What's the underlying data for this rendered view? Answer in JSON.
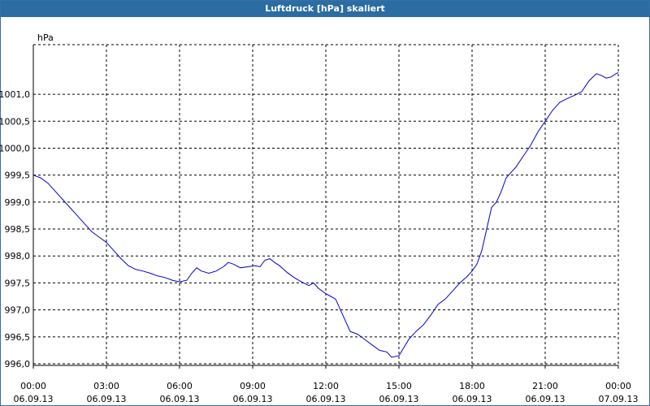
{
  "window": {
    "title": "Luftdruck [hPa] skaliert"
  },
  "chart_data": {
    "type": "line",
    "title": "Luftdruck [hPa] skaliert",
    "ylabel": "hPa",
    "xlabel": "",
    "ylim": [
      995.97,
      1001.92
    ],
    "yticks": [
      {
        "value": 996.0,
        "label": "996,0"
      },
      {
        "value": 996.5,
        "label": "996,5"
      },
      {
        "value": 997.0,
        "label": "997,0"
      },
      {
        "value": 997.5,
        "label": "997,5"
      },
      {
        "value": 998.0,
        "label": "998,0"
      },
      {
        "value": 998.5,
        "label": "998,5"
      },
      {
        "value": 999.0,
        "label": "999,0"
      },
      {
        "value": 999.5,
        "label": "999,5"
      },
      {
        "value": 1000.0,
        "label": "1000,0"
      },
      {
        "value": 1000.5,
        "label": "1000,5"
      },
      {
        "value": 1001.0,
        "label": "1001,0"
      }
    ],
    "xlim": [
      0,
      24
    ],
    "xticks": [
      {
        "value": 0,
        "time": "00:00",
        "date": "06.09.13"
      },
      {
        "value": 3,
        "time": "03:00",
        "date": "06.09.13"
      },
      {
        "value": 6,
        "time": "06:00",
        "date": "06.09.13"
      },
      {
        "value": 9,
        "time": "09:00",
        "date": "06.09.13"
      },
      {
        "value": 12,
        "time": "12:00",
        "date": "06.09.13"
      },
      {
        "value": 15,
        "time": "15:00",
        "date": "06.09.13"
      },
      {
        "value": 18,
        "time": "18:00",
        "date": "06.09.13"
      },
      {
        "value": 21,
        "time": "21:00",
        "date": "06.09.13"
      },
      {
        "value": 24,
        "time": "00:00",
        "date": "07.09.13"
      }
    ],
    "grid": true,
    "colors": {
      "line": "#0000cc",
      "grid": "#000000",
      "title_bar": "#2b6ca3"
    },
    "series": [
      {
        "points": [
          [
            0.0,
            999.5
          ],
          [
            0.3,
            999.45
          ],
          [
            0.6,
            999.35
          ],
          [
            0.9,
            999.2
          ],
          [
            1.2,
            999.05
          ],
          [
            1.5,
            998.9
          ],
          [
            1.8,
            998.75
          ],
          [
            2.1,
            998.6
          ],
          [
            2.4,
            998.45
          ],
          [
            2.7,
            998.35
          ],
          [
            3.0,
            998.25
          ],
          [
            3.3,
            998.1
          ],
          [
            3.6,
            997.95
          ],
          [
            3.9,
            997.82
          ],
          [
            4.2,
            997.75
          ],
          [
            4.5,
            997.72
          ],
          [
            4.8,
            997.68
          ],
          [
            5.1,
            997.63
          ],
          [
            5.4,
            997.6
          ],
          [
            5.7,
            997.55
          ],
          [
            6.0,
            997.52
          ],
          [
            6.3,
            997.55
          ],
          [
            6.5,
            997.68
          ],
          [
            6.7,
            997.78
          ],
          [
            6.9,
            997.72
          ],
          [
            7.2,
            997.68
          ],
          [
            7.5,
            997.72
          ],
          [
            7.8,
            997.8
          ],
          [
            8.0,
            997.88
          ],
          [
            8.2,
            997.85
          ],
          [
            8.5,
            997.78
          ],
          [
            8.8,
            997.8
          ],
          [
            9.1,
            997.82
          ],
          [
            9.3,
            997.8
          ],
          [
            9.5,
            997.92
          ],
          [
            9.7,
            997.95
          ],
          [
            9.9,
            997.88
          ],
          [
            10.1,
            997.82
          ],
          [
            10.4,
            997.7
          ],
          [
            10.7,
            997.6
          ],
          [
            11.0,
            997.52
          ],
          [
            11.3,
            997.45
          ],
          [
            11.5,
            997.5
          ],
          [
            11.7,
            997.4
          ],
          [
            12.0,
            997.3
          ],
          [
            12.2,
            997.25
          ],
          [
            12.4,
            997.2
          ],
          [
            12.6,
            997.0
          ],
          [
            12.8,
            996.8
          ],
          [
            13.0,
            996.6
          ],
          [
            13.3,
            996.55
          ],
          [
            13.6,
            996.45
          ],
          [
            13.9,
            996.35
          ],
          [
            14.2,
            996.25
          ],
          [
            14.5,
            996.22
          ],
          [
            14.7,
            996.12
          ],
          [
            15.0,
            996.15
          ],
          [
            15.2,
            996.3
          ],
          [
            15.4,
            996.45
          ],
          [
            15.7,
            996.6
          ],
          [
            16.0,
            996.72
          ],
          [
            16.3,
            996.9
          ],
          [
            16.6,
            997.1
          ],
          [
            16.9,
            997.2
          ],
          [
            17.2,
            997.35
          ],
          [
            17.5,
            997.5
          ],
          [
            17.8,
            997.62
          ],
          [
            18.0,
            997.72
          ],
          [
            18.2,
            997.85
          ],
          [
            18.4,
            998.1
          ],
          [
            18.6,
            998.5
          ],
          [
            18.8,
            998.9
          ],
          [
            19.0,
            999.0
          ],
          [
            19.2,
            999.2
          ],
          [
            19.4,
            999.45
          ],
          [
            19.6,
            999.55
          ],
          [
            19.8,
            999.65
          ],
          [
            20.1,
            999.85
          ],
          [
            20.4,
            1000.05
          ],
          [
            20.7,
            1000.3
          ],
          [
            21.0,
            1000.5
          ],
          [
            21.3,
            1000.7
          ],
          [
            21.6,
            1000.85
          ],
          [
            21.9,
            1000.92
          ],
          [
            22.2,
            1000.98
          ],
          [
            22.5,
            1001.05
          ],
          [
            22.8,
            1001.25
          ],
          [
            23.1,
            1001.38
          ],
          [
            23.3,
            1001.35
          ],
          [
            23.5,
            1001.3
          ],
          [
            23.7,
            1001.32
          ],
          [
            23.9,
            1001.38
          ],
          [
            24.0,
            1001.4
          ]
        ]
      }
    ]
  }
}
